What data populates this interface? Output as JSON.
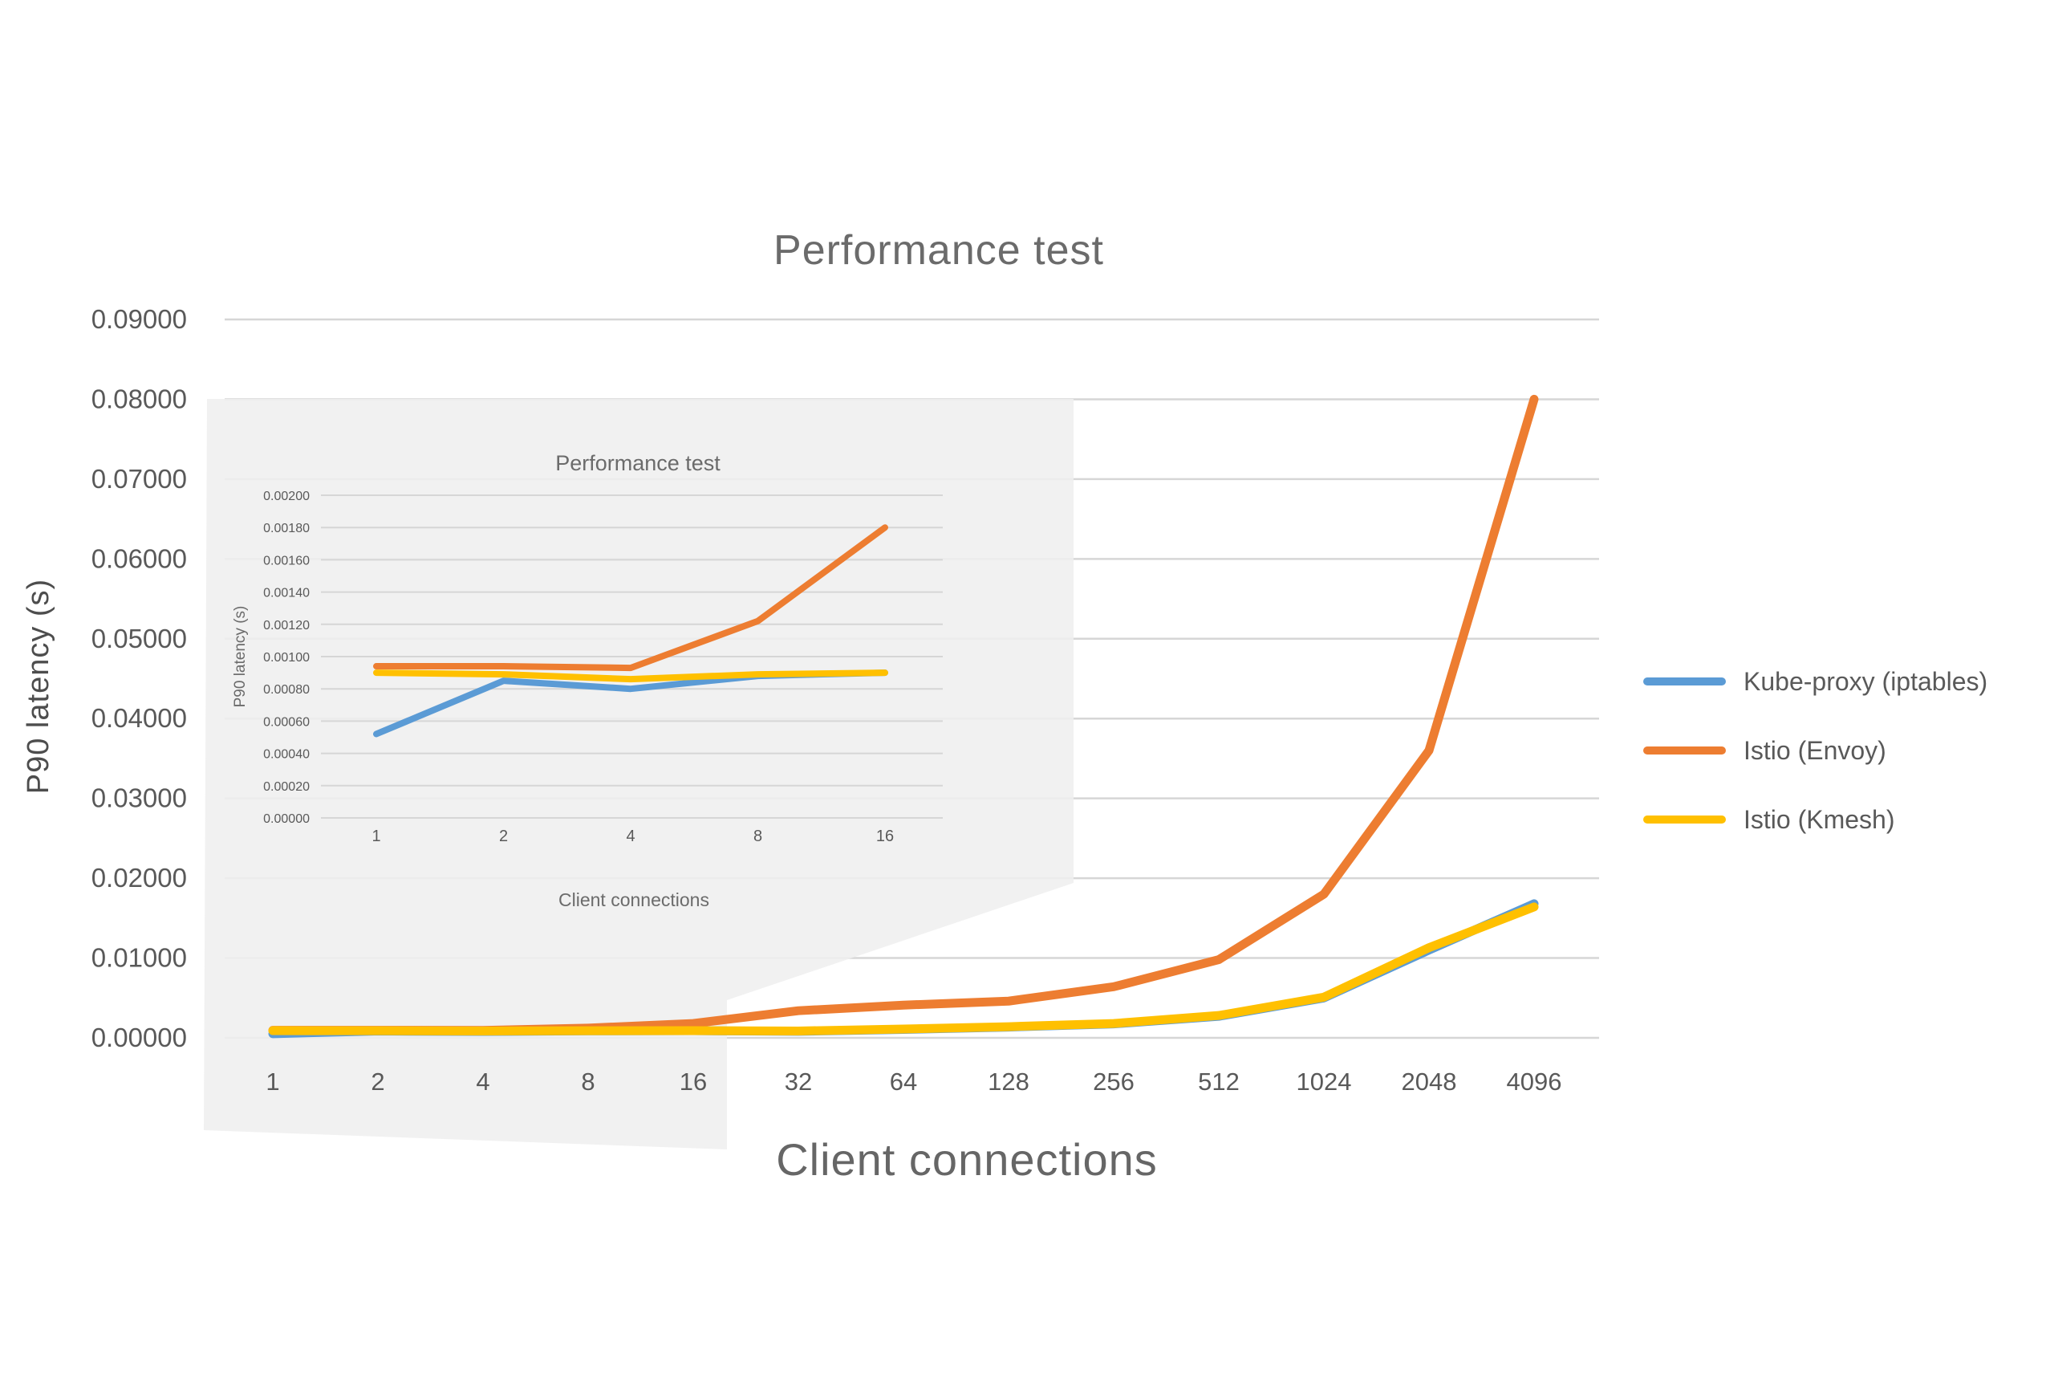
{
  "colors": {
    "grid": "#d6d6d6",
    "tick_text": "#595959",
    "title_text": "#6b6b6b",
    "callout_fill": "#efefef",
    "background": "#ffffff",
    "series_blue": "#5B9BD5",
    "series_orange": "#ED7D31",
    "series_yellow": "#FFC000"
  },
  "legend": {
    "position": "right",
    "entries": [
      "Kube-proxy (iptables)",
      "Istio (Envoy)",
      "Istio (Kmesh)"
    ]
  },
  "chart_data": [
    {
      "id": "main",
      "type": "line",
      "title": "Performance test",
      "xlabel": "Client connections",
      "ylabel": "P90 latency (s)",
      "categories": [
        "1",
        "2",
        "4",
        "8",
        "16",
        "32",
        "64",
        "128",
        "256",
        "512",
        "1024",
        "2048",
        "4096"
      ],
      "y_ticks": [
        "0.00000",
        "0.01000",
        "0.02000",
        "0.03000",
        "0.04000",
        "0.05000",
        "0.06000",
        "0.07000",
        "0.08000",
        "0.09000"
      ],
      "ylim": [
        0,
        0.09
      ],
      "grid": true,
      "legend_position": "right",
      "series": [
        {
          "name": "Kube-proxy (iptables)",
          "color": "#5B9BD5",
          "values": [
            0.00052,
            0.00085,
            0.0008,
            0.00088,
            0.0009,
            0.00082,
            0.00105,
            0.00135,
            0.00175,
            0.0027,
            0.005,
            0.011,
            0.0168
          ]
        },
        {
          "name": "Istio (Envoy)",
          "color": "#ED7D31",
          "values": [
            0.00094,
            0.00094,
            0.00093,
            0.00122,
            0.0018,
            0.0034,
            0.0041,
            0.0046,
            0.0064,
            0.0098,
            0.018,
            0.036,
            0.08
          ]
        },
        {
          "name": "Istio (Kmesh)",
          "color": "#FFC000",
          "values": [
            0.0009,
            0.00089,
            0.00086,
            0.00089,
            0.0009,
            0.00086,
            0.0011,
            0.0014,
            0.0018,
            0.0028,
            0.0051,
            0.0113,
            0.0164
          ]
        }
      ]
    },
    {
      "id": "inset",
      "type": "line",
      "title": "Performance test",
      "xlabel": "Client connections",
      "ylabel": "P90 latency (s)",
      "categories": [
        "1",
        "2",
        "4",
        "8",
        "16"
      ],
      "y_ticks": [
        "0.00000",
        "0.00020",
        "0.00040",
        "0.00060",
        "0.00080",
        "0.00100",
        "0.00120",
        "0.00140",
        "0.00160",
        "0.00180",
        "0.00200"
      ],
      "ylim": [
        0,
        0.002
      ],
      "grid": true,
      "legend_position": "none",
      "series": [
        {
          "name": "Kube-proxy (iptables)",
          "color": "#5B9BD5",
          "values": [
            0.00052,
            0.00085,
            0.0008,
            0.00088,
            0.0009
          ]
        },
        {
          "name": "Istio (Envoy)",
          "color": "#ED7D31",
          "values": [
            0.00094,
            0.00094,
            0.00093,
            0.00122,
            0.0018
          ]
        },
        {
          "name": "Istio (Kmesh)",
          "color": "#FFC000",
          "values": [
            0.0009,
            0.00089,
            0.00086,
            0.00089,
            0.0009
          ]
        }
      ]
    }
  ]
}
